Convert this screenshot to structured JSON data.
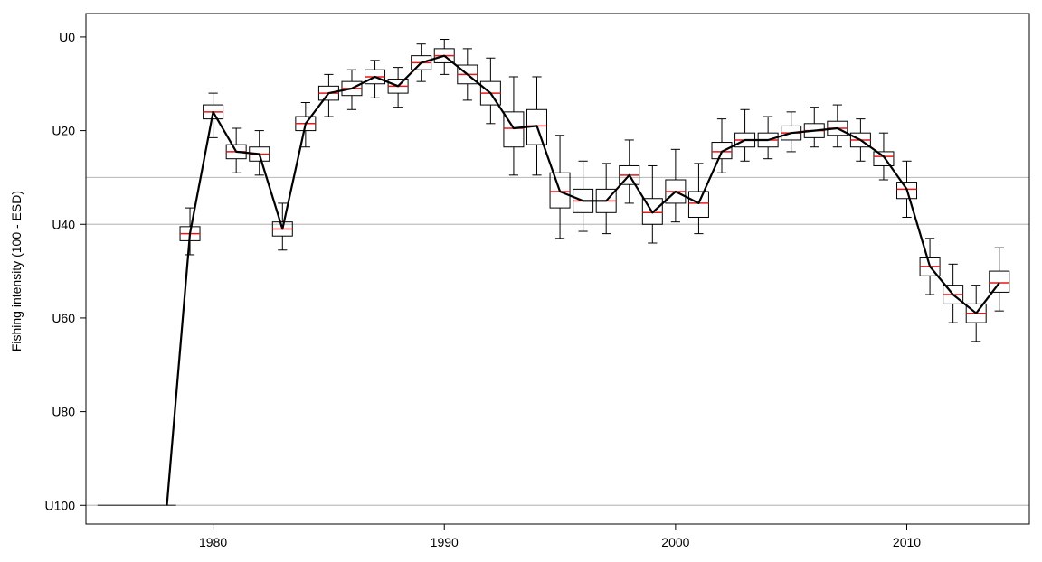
{
  "chart_data": {
    "type": "boxplot-line",
    "title": "",
    "xlabel": "",
    "ylabel": "Fishing intensity (100 - ESD)",
    "xlim": [
      1974.5,
      2015.3
    ],
    "ylim": [
      -5,
      104
    ],
    "y_inverted": true,
    "x_ticks": [
      1980,
      1990,
      2000,
      2010
    ],
    "x_tick_labels": [
      "1980",
      "1990",
      "2000",
      "2010"
    ],
    "y_ticks": [
      0,
      20,
      40,
      60,
      80,
      100
    ],
    "y_tick_labels": [
      "U0",
      "U20",
      "U40",
      "U60",
      "U80",
      "U100"
    ],
    "reference_lines": [
      30,
      40,
      100
    ],
    "colors": {
      "line": "#000000",
      "median": "#e31a1c",
      "box": "#000000",
      "refline": "#bebebe"
    },
    "unfished_segment": {
      "x": [
        1975,
        1978.4
      ],
      "y": 100
    },
    "series": [
      {
        "values": [
          {
            "year": 1978,
            "median": 100,
            "q1": 100,
            "q3": 100,
            "low": 100,
            "high": 100
          },
          {
            "year": 1979,
            "median": 42.0,
            "q1": 40.5,
            "q3": 43.5,
            "low": 36.5,
            "high": 46.5
          },
          {
            "year": 1980,
            "median": 16.0,
            "q1": 14.5,
            "q3": 17.5,
            "low": 12.0,
            "high": 21.5
          },
          {
            "year": 1981,
            "median": 24.5,
            "q1": 23.0,
            "q3": 26.0,
            "low": 19.5,
            "high": 29.0
          },
          {
            "year": 1982,
            "median": 25.0,
            "q1": 23.5,
            "q3": 26.5,
            "low": 20.0,
            "high": 29.5
          },
          {
            "year": 1983,
            "median": 41.0,
            "q1": 39.5,
            "q3": 42.5,
            "low": 35.5,
            "high": 45.5
          },
          {
            "year": 1984,
            "median": 18.5,
            "q1": 17.0,
            "q3": 20.0,
            "low": 14.0,
            "high": 23.5
          },
          {
            "year": 1985,
            "median": 12.0,
            "q1": 10.5,
            "q3": 13.5,
            "low": 8.0,
            "high": 17.0
          },
          {
            "year": 1986,
            "median": 11.0,
            "q1": 9.5,
            "q3": 12.5,
            "low": 7.0,
            "high": 15.5
          },
          {
            "year": 1987,
            "median": 8.5,
            "q1": 7.0,
            "q3": 10.0,
            "low": 5.0,
            "high": 13.0
          },
          {
            "year": 1988,
            "median": 10.5,
            "q1": 9.0,
            "q3": 12.0,
            "low": 6.5,
            "high": 15.0
          },
          {
            "year": 1989,
            "median": 5.5,
            "q1": 4.0,
            "q3": 7.0,
            "low": 1.5,
            "high": 9.5
          },
          {
            "year": 1990,
            "median": 4.0,
            "q1": 2.5,
            "q3": 5.5,
            "low": 0.5,
            "high": 8.0
          },
          {
            "year": 1991,
            "median": 8.0,
            "q1": 6.0,
            "q3": 10.0,
            "low": 2.5,
            "high": 13.5
          },
          {
            "year": 1992,
            "median": 12.0,
            "q1": 9.5,
            "q3": 14.5,
            "low": 4.5,
            "high": 18.5
          },
          {
            "year": 1993,
            "median": 19.5,
            "q1": 16.0,
            "q3": 23.5,
            "low": 8.5,
            "high": 29.5
          },
          {
            "year": 1994,
            "median": 19.0,
            "q1": 15.5,
            "q3": 23.0,
            "low": 8.5,
            "high": 29.5
          },
          {
            "year": 1995,
            "median": 33.0,
            "q1": 29.0,
            "q3": 36.5,
            "low": 21.0,
            "high": 43.0
          },
          {
            "year": 1996,
            "median": 35.0,
            "q1": 32.5,
            "q3": 37.5,
            "low": 26.5,
            "high": 41.5
          },
          {
            "year": 1997,
            "median": 35.0,
            "q1": 32.5,
            "q3": 37.5,
            "low": 27.0,
            "high": 42.0
          },
          {
            "year": 1998,
            "median": 29.5,
            "q1": 27.5,
            "q3": 31.5,
            "low": 22.0,
            "high": 35.5
          },
          {
            "year": 1999,
            "median": 37.5,
            "q1": 34.5,
            "q3": 40.0,
            "low": 27.5,
            "high": 44.0
          },
          {
            "year": 2000,
            "median": 33.0,
            "q1": 30.5,
            "q3": 35.5,
            "low": 24.0,
            "high": 39.5
          },
          {
            "year": 2001,
            "median": 35.5,
            "q1": 33.0,
            "q3": 38.5,
            "low": 27.0,
            "high": 42.0
          },
          {
            "year": 2002,
            "median": 24.5,
            "q1": 22.5,
            "q3": 26.0,
            "low": 17.5,
            "high": 29.0
          },
          {
            "year": 2003,
            "median": 22.0,
            "q1": 20.5,
            "q3": 23.5,
            "low": 15.5,
            "high": 26.5
          },
          {
            "year": 2004,
            "median": 22.0,
            "q1": 20.5,
            "q3": 23.5,
            "low": 17.0,
            "high": 26.0
          },
          {
            "year": 2005,
            "median": 20.5,
            "q1": 19.0,
            "q3": 22.0,
            "low": 16.0,
            "high": 24.5
          },
          {
            "year": 2006,
            "median": 20.0,
            "q1": 18.5,
            "q3": 21.5,
            "low": 15.0,
            "high": 23.5
          },
          {
            "year": 2007,
            "median": 19.5,
            "q1": 18.0,
            "q3": 21.0,
            "low": 14.5,
            "high": 23.5
          },
          {
            "year": 2008,
            "median": 22.0,
            "q1": 20.5,
            "q3": 23.5,
            "low": 17.5,
            "high": 26.5
          },
          {
            "year": 2009,
            "median": 25.5,
            "q1": 24.5,
            "q3": 27.5,
            "low": 20.5,
            "high": 30.5
          },
          {
            "year": 2010,
            "median": 32.5,
            "q1": 31.0,
            "q3": 34.5,
            "low": 26.5,
            "high": 38.5
          },
          {
            "year": 2011,
            "median": 49.0,
            "q1": 47.0,
            "q3": 51.0,
            "low": 43.0,
            "high": 55.0
          },
          {
            "year": 2012,
            "median": 55.0,
            "q1": 53.0,
            "q3": 57.0,
            "low": 48.5,
            "high": 61.0
          },
          {
            "year": 2013,
            "median": 59.0,
            "q1": 57.0,
            "q3": 61.0,
            "low": 53.0,
            "high": 65.0
          },
          {
            "year": 2014,
            "median": 52.5,
            "q1": 50.0,
            "q3": 54.5,
            "low": 45.0,
            "high": 58.5
          }
        ]
      }
    ]
  }
}
